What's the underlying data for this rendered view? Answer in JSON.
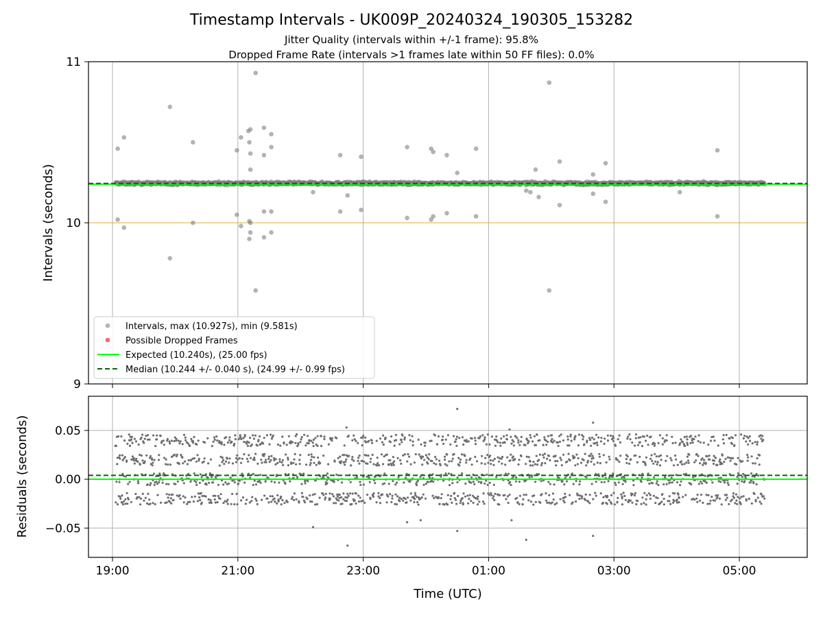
{
  "figure": {
    "title": "Timestamp Intervals - UK009P_20240324_190305_153282",
    "subtitle_1": "Jitter Quality (intervals within +/-1 frame): 95.8%",
    "subtitle_2": "Dropped Frame Rate (intervals >1 frames late within 50 FF files): 0.0%"
  },
  "colors": {
    "intervals": "#808080",
    "dropped": "#ff0000",
    "expected": "#00ff00",
    "median": "#006400",
    "reference_line": "#daa520",
    "grid": "#b0b0b0"
  },
  "chart_data": [
    {
      "type": "scatter",
      "panel": "top",
      "ylabel": "Intervals (seconds)",
      "xlabel": "",
      "xlim": [
        "18:37",
        "06:05"
      ],
      "ylim": [
        9,
        11
      ],
      "yticks": [
        9,
        10,
        11
      ],
      "ytick_labels": [
        "9",
        "10",
        "11"
      ],
      "xticks": [
        "19:00",
        "21:00",
        "23:00",
        "01:00",
        "03:00",
        "05:00"
      ],
      "grid": true,
      "legend_position": "lower-left",
      "legend": [
        {
          "key": "intervals",
          "label": "Intervals, max (10.927s), min (9.581s)",
          "marker": "circle"
        },
        {
          "key": "dropped",
          "label": "Possible Dropped Frames",
          "marker": "circle"
        },
        {
          "key": "expected",
          "label": "Expected (10.240s), (25.00 fps)",
          "marker": "solid"
        },
        {
          "key": "median",
          "label": "Median (10.244 +/- 0.040 s), (24.99 +/- 0.99 fps)",
          "marker": "dashed"
        }
      ],
      "expected_value": 10.24,
      "median_value": 10.244,
      "reference_value": 10.0,
      "data_range": {
        "start": "19:03",
        "end": "05:24"
      },
      "series": [
        {
          "name": "Intervals, max (10.927s), min (9.581s)",
          "band_center": 10.245,
          "band_halfwidth": 0.03,
          "band_points": 1820,
          "outliers": [
            {
              "x": "19:05",
              "y": 10.46
            },
            {
              "x": "19:05",
              "y": 10.02
            },
            {
              "x": "19:11",
              "y": 10.53
            },
            {
              "x": "19:11",
              "y": 9.97
            },
            {
              "x": "19:55",
              "y": 10.72
            },
            {
              "x": "19:55",
              "y": 9.78
            },
            {
              "x": "20:17",
              "y": 10.5
            },
            {
              "x": "20:17",
              "y": 10.0
            },
            {
              "x": "20:59",
              "y": 10.45
            },
            {
              "x": "20:59",
              "y": 10.05
            },
            {
              "x": "21:03",
              "y": 10.53
            },
            {
              "x": "21:03",
              "y": 9.98
            },
            {
              "x": "21:10",
              "y": 10.57
            },
            {
              "x": "21:11",
              "y": 10.5
            },
            {
              "x": "21:11",
              "y": 10.01
            },
            {
              "x": "21:11",
              "y": 9.9
            },
            {
              "x": "21:12",
              "y": 10.58
            },
            {
              "x": "21:12",
              "y": 10.43
            },
            {
              "x": "21:12",
              "y": 10.33
            },
            {
              "x": "21:12",
              "y": 10.0
            },
            {
              "x": "21:12",
              "y": 9.94
            },
            {
              "x": "21:17",
              "y": 10.93
            },
            {
              "x": "21:17",
              "y": 9.58
            },
            {
              "x": "21:25",
              "y": 10.59
            },
            {
              "x": "21:25",
              "y": 10.42
            },
            {
              "x": "21:25",
              "y": 10.07
            },
            {
              "x": "21:25",
              "y": 9.91
            },
            {
              "x": "21:32",
              "y": 10.55
            },
            {
              "x": "21:32",
              "y": 10.47
            },
            {
              "x": "21:32",
              "y": 10.07
            },
            {
              "x": "21:32",
              "y": 9.94
            },
            {
              "x": "22:12",
              "y": 10.19
            },
            {
              "x": "22:38",
              "y": 10.42
            },
            {
              "x": "22:38",
              "y": 10.07
            },
            {
              "x": "22:45",
              "y": 10.17
            },
            {
              "x": "22:58",
              "y": 10.41
            },
            {
              "x": "22:58",
              "y": 10.08
            },
            {
              "x": "23:42",
              "y": 10.47
            },
            {
              "x": "23:42",
              "y": 10.03
            },
            {
              "x": "24:05",
              "y": 10.46
            },
            {
              "x": "24:05",
              "y": 10.02
            },
            {
              "x": "24:07",
              "y": 10.44
            },
            {
              "x": "24:07",
              "y": 10.04
            },
            {
              "x": "24:20",
              "y": 10.42
            },
            {
              "x": "24:20",
              "y": 10.06
            },
            {
              "x": "24:30",
              "y": 10.31
            },
            {
              "x": "24:48",
              "y": 10.46
            },
            {
              "x": "24:48",
              "y": 10.04
            },
            {
              "x": "25:36",
              "y": 10.2
            },
            {
              "x": "25:40",
              "y": 10.19
            },
            {
              "x": "25:45",
              "y": 10.33
            },
            {
              "x": "25:48",
              "y": 10.16
            },
            {
              "x": "25:58",
              "y": 10.87
            },
            {
              "x": "25:58",
              "y": 9.58
            },
            {
              "x": "26:08",
              "y": 10.38
            },
            {
              "x": "26:08",
              "y": 10.11
            },
            {
              "x": "26:40",
              "y": 10.3
            },
            {
              "x": "26:40",
              "y": 10.18
            },
            {
              "x": "26:52",
              "y": 10.37
            },
            {
              "x": "26:52",
              "y": 10.13
            },
            {
              "x": "28:03",
              "y": 10.19
            },
            {
              "x": "28:39",
              "y": 10.45
            },
            {
              "x": "28:39",
              "y": 10.04
            }
          ]
        }
      ]
    },
    {
      "type": "scatter",
      "panel": "bottom",
      "ylabel": "Residuals (seconds)",
      "xlabel": "Time (UTC)",
      "xlim": [
        "18:37",
        "06:05"
      ],
      "ylim": [
        -0.08,
        0.085
      ],
      "yticks": [
        -0.05,
        0.0,
        0.05
      ],
      "ytick_labels": [
        "−0.05",
        "0.00",
        "0.05"
      ],
      "xticks": [
        "19:00",
        "21:00",
        "23:00",
        "01:00",
        "03:00",
        "05:00"
      ],
      "grid": true,
      "expected_value": 0.0,
      "median_value": 0.004,
      "series": [
        {
          "name": "Residuals",
          "point_count": 2000,
          "levels": [
            -0.02,
            0.0,
            0.02,
            0.04
          ],
          "spread": 0.012,
          "outliers": [
            {
              "x": "22:45",
              "y": -0.068
            },
            {
              "x": "22:44",
              "y": 0.053
            },
            {
              "x": "24:30",
              "y": 0.072
            },
            {
              "x": "24:30",
              "y": -0.053
            },
            {
              "x": "26:40",
              "y": 0.058
            },
            {
              "x": "26:40",
              "y": -0.058
            },
            {
              "x": "25:36",
              "y": -0.062
            },
            {
              "x": "22:12",
              "y": -0.049
            },
            {
              "x": "23:42",
              "y": -0.044
            },
            {
              "x": "23:55",
              "y": -0.042
            },
            {
              "x": "25:20",
              "y": 0.051
            },
            {
              "x": "25:22",
              "y": -0.042
            }
          ]
        }
      ]
    }
  ]
}
